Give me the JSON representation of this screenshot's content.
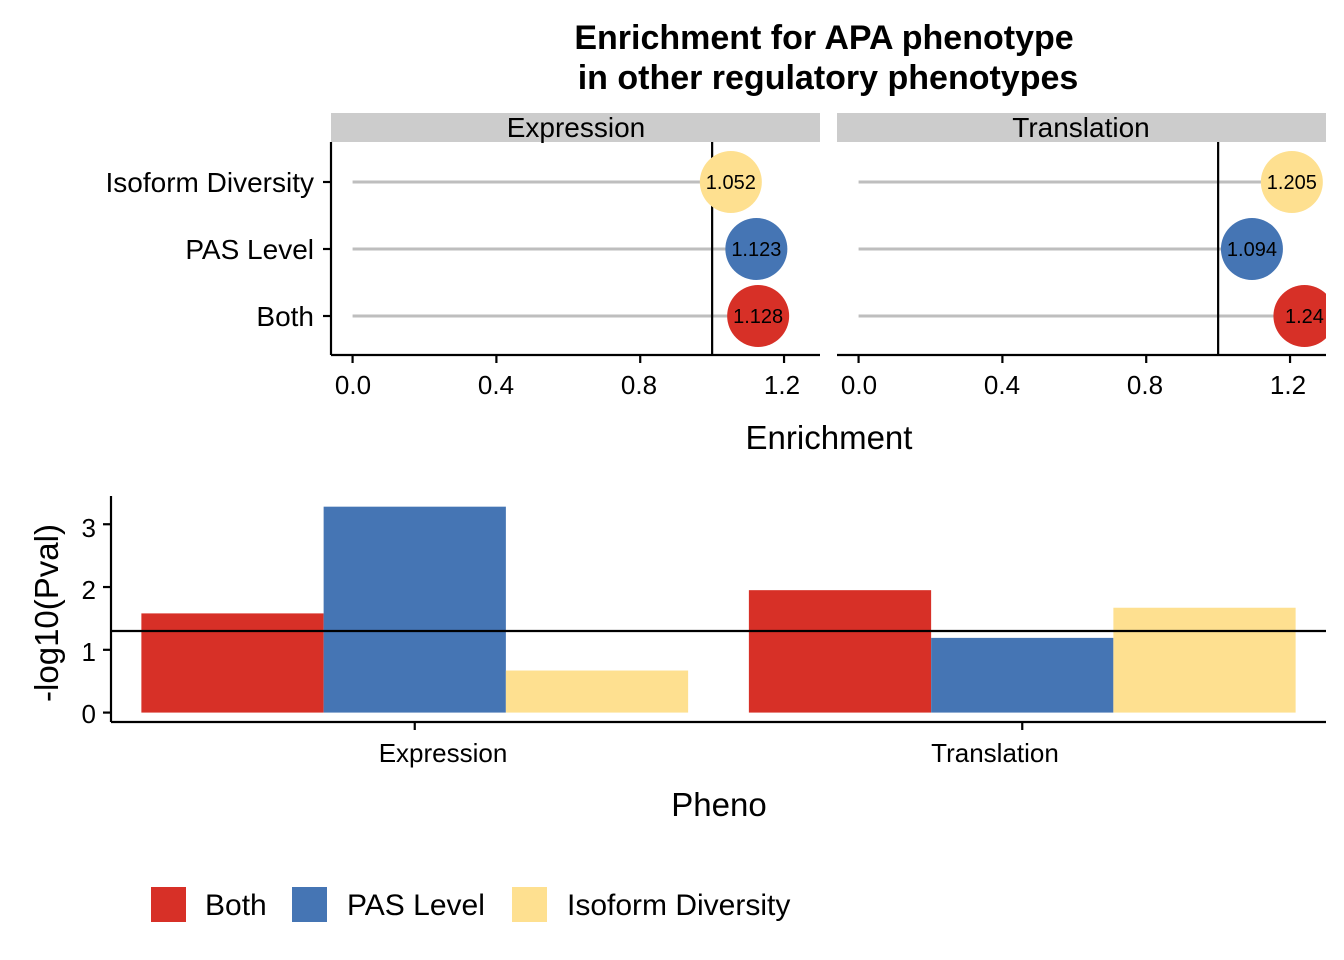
{
  "chart_data": [
    {
      "type": "scatter",
      "subtype": "lollipop-faceted",
      "title": [
        "Enrichment for APA phenotype",
        "in other regulatory phenotypes"
      ],
      "xlabel": "Enrichment",
      "xlim": [
        -0.06,
        1.3
      ],
      "xticks": [
        "0.0",
        "0.4",
        "0.8",
        "1.2"
      ],
      "xtick_values": [
        0,
        0.4,
        0.8,
        1.2
      ],
      "reference_line": 1,
      "categories": [
        "Isoform Diversity",
        "PAS Level",
        "Both"
      ],
      "category_colors": {
        "Isoform Diversity": "#fee090",
        "PAS Level": "#4575b4",
        "Both": "#d73027"
      },
      "stem_color": "#bebebe",
      "strip_color": "#cccccc",
      "facets": [
        {
          "name": "Expression",
          "points": [
            {
              "category": "Isoform Diversity",
              "value": 1.052,
              "label": "1.052"
            },
            {
              "category": "PAS Level",
              "value": 1.123,
              "label": "1.123"
            },
            {
              "category": "Both",
              "value": 1.128,
              "label": "1.128"
            }
          ]
        },
        {
          "name": "Translation",
          "points": [
            {
              "category": "Isoform Diversity",
              "value": 1.205,
              "label": "1.205"
            },
            {
              "category": "PAS Level",
              "value": 1.094,
              "label": "1.094"
            },
            {
              "category": "Both",
              "value": 1.24,
              "label": "1.24"
            }
          ]
        }
      ]
    },
    {
      "type": "bar",
      "subtype": "grouped",
      "xlabel": "Pheno",
      "ylabel": "-log10(Pval)",
      "ylim": [
        -0.15,
        3.45
      ],
      "yticks": [
        "0",
        "1",
        "2",
        "3"
      ],
      "ytick_values": [
        0,
        1,
        2,
        3
      ],
      "reference_line": 1.3,
      "categories": [
        "Expression",
        "Translation"
      ],
      "series": [
        {
          "name": "Both",
          "color": "#d73027",
          "values": [
            1.58,
            1.95
          ]
        },
        {
          "name": "PAS Level",
          "color": "#4575b4",
          "values": [
            3.28,
            1.19
          ]
        },
        {
          "name": "Isoform Diversity",
          "color": "#fee090",
          "values": [
            0.67,
            1.67
          ]
        }
      ],
      "legend": {
        "position": "bottom",
        "items": [
          {
            "name": "Both",
            "color": "#d73027"
          },
          {
            "name": "PAS Level",
            "color": "#4575b4"
          },
          {
            "name": "Isoform Diversity",
            "color": "#fee090"
          }
        ]
      }
    }
  ]
}
